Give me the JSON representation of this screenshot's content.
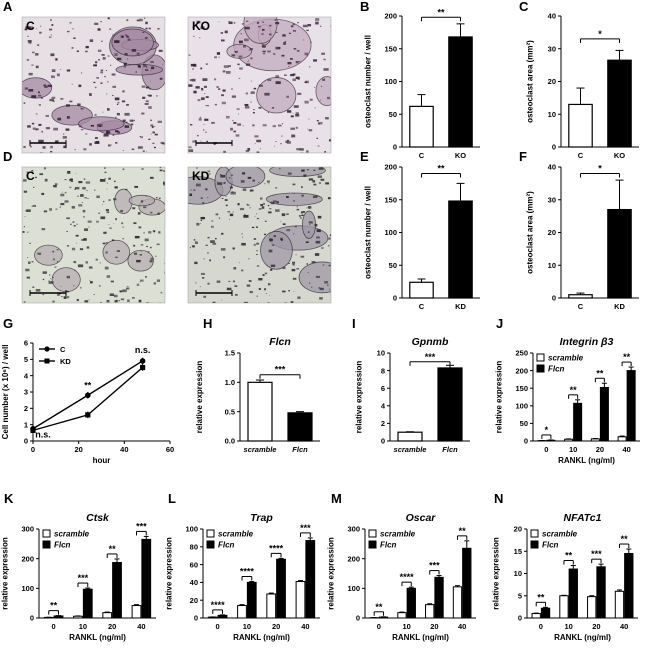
{
  "figure": {
    "micrographs": [
      {
        "panel": "A",
        "label": "C",
        "variant": "c1"
      },
      {
        "panel": "",
        "label": "KO",
        "variant": "ko"
      },
      {
        "panel": "D",
        "label": "C",
        "variant": "c2"
      },
      {
        "panel": "",
        "label": "KD",
        "variant": "kd"
      }
    ]
  },
  "chart_data": [
    {
      "id": "B",
      "panel": "B",
      "type": "bar",
      "title": "",
      "categories": [
        "C",
        "KO"
      ],
      "values": [
        62,
        168
      ],
      "errors": [
        18,
        20
      ],
      "fills": [
        "white",
        "black"
      ],
      "ylabel": "osteoclast number / well",
      "ylim": [
        0,
        200
      ],
      "yticks": [
        0,
        50,
        100,
        150,
        200
      ],
      "sig": [
        {
          "from": 0,
          "to": 1,
          "label": "**",
          "y": 198
        }
      ]
    },
    {
      "id": "C",
      "panel": "C",
      "type": "bar",
      "title": "",
      "categories": [
        "C",
        "KO"
      ],
      "values": [
        13,
        26.5
      ],
      "errors": [
        5,
        3
      ],
      "fills": [
        "white",
        "black"
      ],
      "ylabel": "osteoclast area (mm²)",
      "ylim": [
        0,
        40
      ],
      "yticks": [
        0,
        10,
        20,
        30,
        40
      ],
      "sig": [
        {
          "from": 0,
          "to": 1,
          "label": "*",
          "y": 33
        }
      ]
    },
    {
      "id": "E",
      "panel": "E",
      "type": "bar",
      "title": "",
      "categories": [
        "C",
        "KD"
      ],
      "values": [
        24,
        148
      ],
      "errors": [
        5,
        27
      ],
      "fills": [
        "white",
        "black"
      ],
      "ylabel": "osteoclast number / well",
      "ylim": [
        0,
        200
      ],
      "yticks": [
        0,
        50,
        100,
        150,
        200
      ],
      "sig": [
        {
          "from": 0,
          "to": 1,
          "label": "**",
          "y": 190
        }
      ]
    },
    {
      "id": "F",
      "panel": "F",
      "type": "bar",
      "title": "",
      "categories": [
        "C",
        "KD"
      ],
      "values": [
        1,
        27
      ],
      "errors": [
        0.5,
        9
      ],
      "fills": [
        "white",
        "black"
      ],
      "ylabel": "osteoclast area (mm²)",
      "ylim": [
        0,
        40
      ],
      "yticks": [
        0,
        10,
        20,
        30,
        40
      ],
      "sig": [
        {
          "from": 0,
          "to": 1,
          "label": "*",
          "y": 38
        }
      ]
    },
    {
      "id": "G",
      "panel": "G",
      "type": "line",
      "title": "",
      "xlabel": "hour",
      "ylabel": "Cell number  (x 10⁶) / well",
      "xlim": [
        0,
        60
      ],
      "ylim": [
        0,
        6
      ],
      "xticks": [
        0,
        20,
        40,
        60
      ],
      "yticks": [
        0,
        1,
        2,
        3,
        4,
        5,
        6
      ],
      "series": [
        {
          "name": "C",
          "marker": "circle",
          "x": [
            0,
            24,
            48
          ],
          "y": [
            0.75,
            2.8,
            4.9
          ],
          "err": [
            0.1,
            0.2,
            0.2
          ]
        },
        {
          "name": "KD",
          "marker": "square",
          "x": [
            0,
            24,
            48
          ],
          "y": [
            0.65,
            1.6,
            4.5
          ],
          "err": [
            0.1,
            0.2,
            0.2
          ]
        }
      ],
      "annotations": [
        {
          "text": "n.s.",
          "x": 1,
          "y": 0.2
        },
        {
          "text": "**",
          "x": 24,
          "y": 3.2
        },
        {
          "text": "n.s.",
          "x": 48,
          "y": 5.4
        }
      ],
      "legend_position": "top-left"
    },
    {
      "id": "H",
      "panel": "H",
      "type": "bar",
      "title": "Flcn",
      "categories": [
        "scramble",
        "Flcn"
      ],
      "values": [
        1.0,
        0.48
      ],
      "errors": [
        0.04,
        0.02
      ],
      "fills": [
        "white",
        "black"
      ],
      "ylabel": "relative expression",
      "ylim": [
        0,
        1.5
      ],
      "yticks": [
        0.0,
        0.5,
        1.0,
        1.5
      ],
      "ytickdecimals": 1,
      "sig": [
        {
          "from": 0,
          "to": 1,
          "label": "***",
          "y": 1.13
        }
      ]
    },
    {
      "id": "I",
      "panel": "I",
      "type": "bar",
      "title": "Gpnmb",
      "categories": [
        "scramble",
        "Flcn"
      ],
      "values": [
        1.0,
        8.3
      ],
      "errors": [
        0.05,
        0.3
      ],
      "fills": [
        "white",
        "black"
      ],
      "ylabel": "relative expression",
      "ylim": [
        0,
        10
      ],
      "yticks": [
        0,
        2,
        4,
        6,
        8,
        10
      ],
      "sig": [
        {
          "from": 0,
          "to": 1,
          "label": "***",
          "y": 9.0
        }
      ]
    },
    {
      "id": "J",
      "panel": "J",
      "type": "groupedbar",
      "title": "Integrin β3",
      "categories": [
        "0",
        "10",
        "20",
        "40"
      ],
      "xlabel": "RANKL (ng/ml)",
      "ylabel": "relative expression",
      "ylim": [
        0,
        250
      ],
      "yticks": [
        0,
        50,
        100,
        150,
        200,
        250
      ],
      "series": [
        {
          "name": "scramble",
          "values": [
            1,
            5,
            6,
            12
          ],
          "errors": [
            0.5,
            1,
            1,
            2
          ]
        },
        {
          "name": "Flcn",
          "values": [
            2,
            107,
            152,
            200
          ],
          "errors": [
            1,
            10,
            12,
            10
          ]
        }
      ],
      "sig": [
        "*",
        "**",
        "**",
        "**"
      ],
      "legend_position": "top-left"
    },
    {
      "id": "K",
      "panel": "K",
      "type": "groupedbar",
      "title": "Ctsk",
      "categories": [
        "0",
        "10",
        "20",
        "40"
      ],
      "xlabel": "RANKL (ng/ml)",
      "ylabel": "relative expression",
      "ylim": [
        0,
        300
      ],
      "yticks": [
        0,
        100,
        200,
        300
      ],
      "series": [
        {
          "name": "scramble",
          "values": [
            2,
            6,
            18,
            42
          ],
          "errors": [
            0.5,
            1,
            2,
            3
          ]
        },
        {
          "name": "Flcn",
          "values": [
            7,
            97,
            187,
            265
          ],
          "errors": [
            1,
            4,
            12,
            10
          ]
        }
      ],
      "sig": [
        "**",
        "***",
        "**",
        "***"
      ],
      "legend_position": "top-left"
    },
    {
      "id": "L",
      "panel": "L",
      "type": "groupedbar",
      "title": "Trap",
      "categories": [
        "0",
        "10",
        "20",
        "40"
      ],
      "xlabel": "RANKL (ng/ml)",
      "ylabel": "relative expression",
      "ylim": [
        0,
        100
      ],
      "yticks": [
        0,
        20,
        40,
        60,
        80,
        100
      ],
      "series": [
        {
          "name": "scramble",
          "values": [
            1,
            14,
            27,
            41
          ],
          "errors": [
            0.2,
            1,
            1,
            1
          ]
        },
        {
          "name": "Flcn",
          "values": [
            3,
            40,
            66,
            87
          ],
          "errors": [
            0.5,
            1,
            1,
            3
          ]
        }
      ],
      "sig": [
        "****",
        "****",
        "****",
        "***"
      ],
      "legend_position": "top-left"
    },
    {
      "id": "M",
      "panel": "M",
      "type": "groupedbar",
      "title": "Oscar",
      "categories": [
        "0",
        "10",
        "20",
        "40"
      ],
      "xlabel": "RANKL (ng/ml)",
      "ylabel": "relative expression",
      "ylim": [
        0,
        300
      ],
      "yticks": [
        0,
        100,
        200,
        300
      ],
      "series": [
        {
          "name": "scramble",
          "values": [
            1,
            18,
            45,
            105
          ],
          "errors": [
            0.5,
            2,
            3,
            4
          ]
        },
        {
          "name": "Flcn",
          "values": [
            3,
            100,
            137,
            235
          ],
          "errors": [
            1,
            4,
            6,
            25
          ]
        }
      ],
      "sig": [
        "**",
        "****",
        "***",
        "**"
      ],
      "legend_position": "top-left"
    },
    {
      "id": "N",
      "panel": "N",
      "type": "groupedbar",
      "title": "NFATc1",
      "categories": [
        "0",
        "10",
        "20",
        "40"
      ],
      "xlabel": "RANKL (ng/ml)",
      "ylabel": "relative expression",
      "ylim": [
        0,
        20
      ],
      "yticks": [
        0,
        5,
        10,
        15,
        20
      ],
      "series": [
        {
          "name": "scramble",
          "values": [
            1,
            5,
            4.8,
            6
          ],
          "errors": [
            0.1,
            0.1,
            0.2,
            0.3
          ]
        },
        {
          "name": "Flcn",
          "values": [
            2.2,
            11,
            11.5,
            14.5
          ],
          "errors": [
            0.2,
            0.8,
            0.6,
            1
          ]
        }
      ],
      "sig": [
        "**",
        "**",
        "***",
        "**"
      ],
      "legend_position": "top-left"
    }
  ]
}
